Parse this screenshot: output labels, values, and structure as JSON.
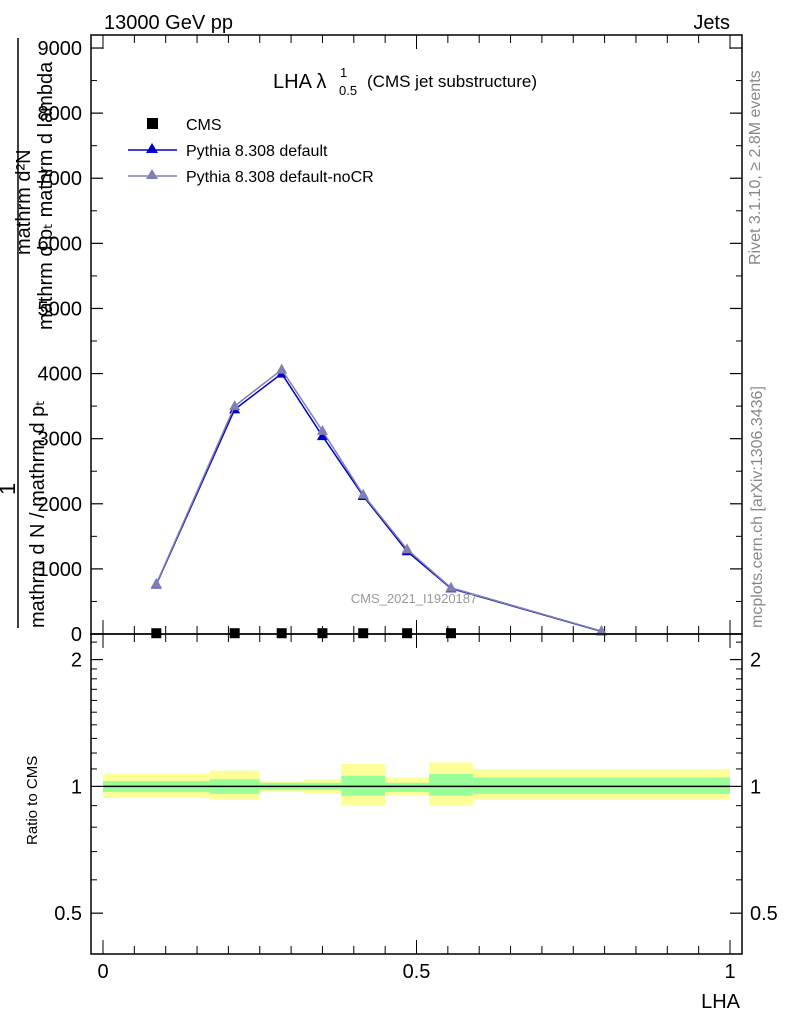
{
  "header": {
    "left": "13000 GeV pp",
    "right": "Jets",
    "side_rivet": "Rivet 3.1.10, ≥ 2.8M events",
    "side_mcplots": "mcplots.cern.ch [arXiv:1306.3436]",
    "watermark": "CMS_2021_I1920187"
  },
  "title": {
    "main": "LHA λ",
    "sup": "1",
    "sub": "0.5",
    "suffix": "(CMS jet substructure)"
  },
  "ylabel": {
    "numerator_top": "mathrm d²N",
    "numerator_bottom": "mathrm d pₜ mathrm d lambda",
    "one": "1",
    "denominator": "mathrm d N / mathrm d pₜ",
    "overlap": "mathrm d pₜ mathrm d pₜ"
  },
  "colors": {
    "cms": "#000000",
    "default": "#0000cc",
    "nocr": "#8080b0",
    "band_yellow": "#ffff99",
    "band_green": "#99ff99"
  },
  "chart_data": [
    {
      "type": "line",
      "title": "LHA λ¹₀.₅ (CMS jet substructure)",
      "xlabel": "LHA",
      "ylabel": "1/N dN/dpₜ d²N/dpₜ dλ",
      "xlim": [
        0,
        1
      ],
      "ylim": [
        0,
        9200
      ],
      "yticks": [
        0,
        1000,
        2000,
        3000,
        4000,
        5000,
        6000,
        7000,
        8000,
        9000
      ],
      "ytick_labels": [
        "0",
        "1000",
        "2000",
        "3000",
        "4000",
        "5000",
        "6000",
        "7000",
        "8000",
        "9000"
      ],
      "legend_position": "top-left",
      "series": [
        {
          "name": "CMS",
          "marker": "square",
          "x": [
            0.085,
            0.21,
            0.285,
            0.35,
            0.415,
            0.485,
            0.555
          ],
          "y": [
            12,
            12,
            12,
            12,
            12,
            12,
            12
          ]
        },
        {
          "name": "Pythia 8.308 default",
          "marker": "triangle",
          "x": [
            0.085,
            0.21,
            0.285,
            0.35,
            0.415,
            0.485,
            0.555,
            0.795
          ],
          "y": [
            760,
            3450,
            4000,
            3040,
            2120,
            1270,
            700,
            40
          ]
        },
        {
          "name": "Pythia 8.308 default-noCR",
          "marker": "triangle",
          "x": [
            0.085,
            0.21,
            0.285,
            0.35,
            0.415,
            0.485,
            0.555,
            0.795
          ],
          "y": [
            770,
            3500,
            4060,
            3120,
            2140,
            1300,
            710,
            45
          ]
        }
      ]
    },
    {
      "type": "area",
      "ylabel": "Ratio to CMS",
      "xlabel": "LHA",
      "xlim": [
        0,
        1
      ],
      "ylim": [
        0.4,
        2.3
      ],
      "yticks": [
        0.5,
        1,
        2
      ],
      "ytick_labels": [
        "0.5",
        "1",
        "2"
      ],
      "xticks": [
        0,
        0.5,
        1
      ],
      "xtick_labels": [
        "0",
        "0.5",
        "1"
      ],
      "bins": [
        {
          "x": [
            0.0,
            0.17
          ],
          "yellow": [
            0.94,
            1.07
          ],
          "green": [
            0.97,
            1.03
          ]
        },
        {
          "x": [
            0.17,
            0.25
          ],
          "yellow": [
            0.93,
            1.09
          ],
          "green": [
            0.96,
            1.04
          ]
        },
        {
          "x": [
            0.25,
            0.32
          ],
          "yellow": [
            0.97,
            1.03
          ],
          "green": [
            0.98,
            1.02
          ]
        },
        {
          "x": [
            0.32,
            0.38
          ],
          "yellow": [
            0.96,
            1.04
          ],
          "green": [
            0.98,
            1.02
          ]
        },
        {
          "x": [
            0.38,
            0.45
          ],
          "yellow": [
            0.9,
            1.13
          ],
          "green": [
            0.95,
            1.06
          ]
        },
        {
          "x": [
            0.45,
            0.52
          ],
          "yellow": [
            0.95,
            1.05
          ],
          "green": [
            0.97,
            1.02
          ]
        },
        {
          "x": [
            0.52,
            0.59
          ],
          "yellow": [
            0.9,
            1.14
          ],
          "green": [
            0.95,
            1.07
          ]
        },
        {
          "x": [
            0.59,
            1.0
          ],
          "yellow": [
            0.93,
            1.1
          ],
          "green": [
            0.96,
            1.05
          ]
        }
      ]
    }
  ]
}
